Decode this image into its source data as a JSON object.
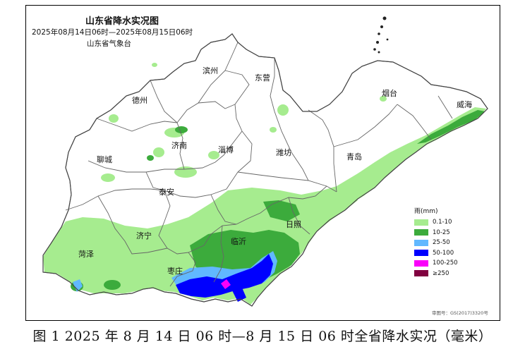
{
  "map": {
    "title": "山东省降水实况图",
    "period": "2025年08月14日06时—2025年08月15日06时",
    "agency": "山东省气象台",
    "review_number": "审图号：GS(2017)3320号",
    "cities": [
      {
        "name": "滨州"
      },
      {
        "name": "东营"
      },
      {
        "name": "烟台"
      },
      {
        "name": "威海"
      },
      {
        "name": "德州"
      },
      {
        "name": "济南"
      },
      {
        "name": "淄博"
      },
      {
        "name": "潍坊"
      },
      {
        "name": "聊城"
      },
      {
        "name": "青岛"
      },
      {
        "name": "泰安"
      },
      {
        "name": "日照"
      },
      {
        "name": "济宁"
      },
      {
        "name": "临沂"
      },
      {
        "name": "菏泽"
      },
      {
        "name": "枣庄"
      }
    ],
    "legend": {
      "title": "雨(mm)",
      "items": [
        {
          "label": "0.1-10",
          "color": "#a6ec8f"
        },
        {
          "label": "10-25",
          "color": "#3cab3c"
        },
        {
          "label": "25-50",
          "color": "#61b8ff"
        },
        {
          "label": "50-100",
          "color": "#0000fe"
        },
        {
          "label": "100-250",
          "color": "#fa00fa"
        },
        {
          "label": "≥250",
          "color": "#810040"
        }
      ]
    }
  },
  "caption": "图 1 2025 年 8 月 14 日 06 时—8 月 15 日 06 时全省降水实况（毫米）"
}
